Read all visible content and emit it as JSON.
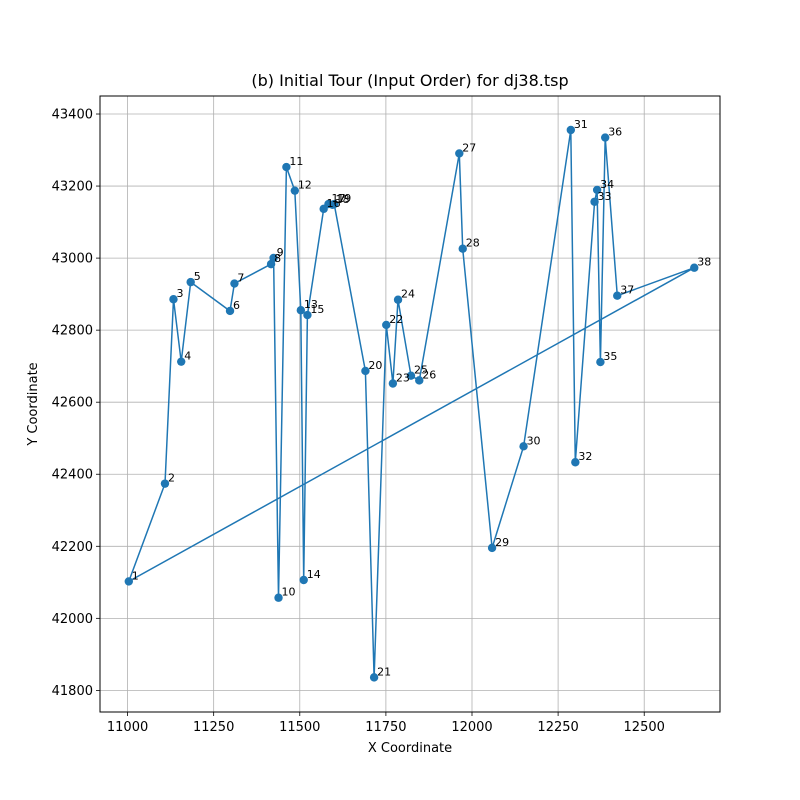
{
  "chart_data": {
    "type": "line",
    "title": "(b) Initial Tour (Input Order) for dj38.tsp",
    "xlabel": "X Coordinate",
    "ylabel": "Y Coordinate",
    "xlim": [
      10920,
      12720
    ],
    "ylim": [
      41740,
      43450
    ],
    "xticks": [
      11000,
      11250,
      11500,
      11750,
      12000,
      12250,
      12500
    ],
    "yticks": [
      41800,
      42000,
      42200,
      42400,
      42600,
      42800,
      43000,
      43200,
      43400
    ],
    "grid": true,
    "color": "#1f77b4",
    "closed_tour": true,
    "points": [
      {
        "label": "1",
        "x": 11003.6,
        "y": 42102.5
      },
      {
        "label": "2",
        "x": 11108.6,
        "y": 42373.9
      },
      {
        "label": "3",
        "x": 11133.3,
        "y": 42885.8
      },
      {
        "label": "4",
        "x": 11155.8,
        "y": 42712.5
      },
      {
        "label": "5",
        "x": 11183.3,
        "y": 42933.3
      },
      {
        "label": "6",
        "x": 11297.5,
        "y": 42853.3
      },
      {
        "label": "7",
        "x": 11310.3,
        "y": 42929.4
      },
      {
        "label": "8",
        "x": 11416.7,
        "y": 42983.3
      },
      {
        "label": "9",
        "x": 11423.9,
        "y": 43000.3
      },
      {
        "label": "10",
        "x": 11438.3,
        "y": 42057.2
      },
      {
        "label": "11",
        "x": 11461.1,
        "y": 43252.8
      },
      {
        "label": "12",
        "x": 11485.6,
        "y": 43187.2
      },
      {
        "label": "13",
        "x": 11503.1,
        "y": 42855.3
      },
      {
        "label": "14",
        "x": 11511.4,
        "y": 42106.4
      },
      {
        "label": "15",
        "x": 11522.2,
        "y": 42841.9
      },
      {
        "label": "16",
        "x": 11569.4,
        "y": 43136.7
      },
      {
        "label": "17",
        "x": 11583.3,
        "y": 43150.0
      },
      {
        "label": "18",
        "x": 11595.0,
        "y": 43148.1
      },
      {
        "label": "19",
        "x": 11600.0,
        "y": 43150.0
      },
      {
        "label": "20",
        "x": 11690.6,
        "y": 42686.7
      },
      {
        "label": "21",
        "x": 11715.8,
        "y": 41836.1
      },
      {
        "label": "22",
        "x": 11751.1,
        "y": 42814.4
      },
      {
        "label": "23",
        "x": 11770.3,
        "y": 42651.9
      },
      {
        "label": "24",
        "x": 11785.3,
        "y": 42884.4
      },
      {
        "label": "25",
        "x": 11822.8,
        "y": 42673.6
      },
      {
        "label": "26",
        "x": 11846.9,
        "y": 42660.6
      },
      {
        "label": "27",
        "x": 11963.1,
        "y": 43290.6
      },
      {
        "label": "28",
        "x": 11973.1,
        "y": 43026.1
      },
      {
        "label": "29",
        "x": 12058.3,
        "y": 42195.6
      },
      {
        "label": "30",
        "x": 12149.7,
        "y": 42477.5
      },
      {
        "label": "31",
        "x": 12286.9,
        "y": 43355.6
      },
      {
        "label": "32",
        "x": 12300.0,
        "y": 42433.3
      },
      {
        "label": "33",
        "x": 12355.8,
        "y": 43156.4
      },
      {
        "label": "34",
        "x": 12363.3,
        "y": 43189.2
      },
      {
        "label": "35",
        "x": 12372.8,
        "y": 42711.4
      },
      {
        "label": "36",
        "x": 12386.7,
        "y": 43334.7
      },
      {
        "label": "37",
        "x": 12421.7,
        "y": 42895.6
      },
      {
        "label": "38",
        "x": 12645.3,
        "y": 42973.3
      }
    ]
  }
}
